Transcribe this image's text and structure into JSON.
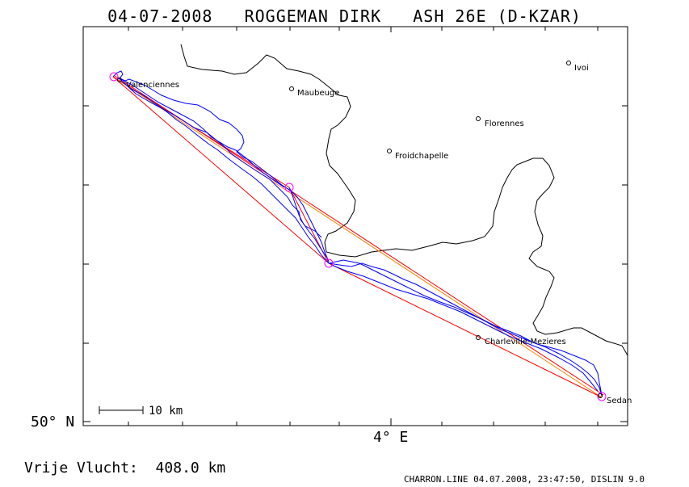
{
  "header": {
    "title": "04-07-2008   ROGGEMAN DIRK   ASH 26E (D-KZAR)"
  },
  "axes": {
    "lat_label": "50° N",
    "lon_label": "4° E"
  },
  "scale_bar": {
    "label": "10 km"
  },
  "towns": [
    {
      "name": "Valenciennes"
    },
    {
      "name": "Maubeuge"
    },
    {
      "name": "Ivoi"
    },
    {
      "name": "Florennes"
    },
    {
      "name": "Froidchapelle"
    },
    {
      "name": "Charleville-Mezieres"
    },
    {
      "name": "Sedan"
    }
  ],
  "summary": {
    "distance_text": "Vrije Vlucht:  408.0 km"
  },
  "footer": {
    "text": "CHARRON.LINE 04.07.2008, 23:47:50, DISLIN 9.0"
  },
  "colors": {
    "track": "#0000ff",
    "task_line": "#ff0000",
    "task_line_alt": "#ff8000",
    "turnpoint": "#ff00ff",
    "border": "#000000"
  }
}
